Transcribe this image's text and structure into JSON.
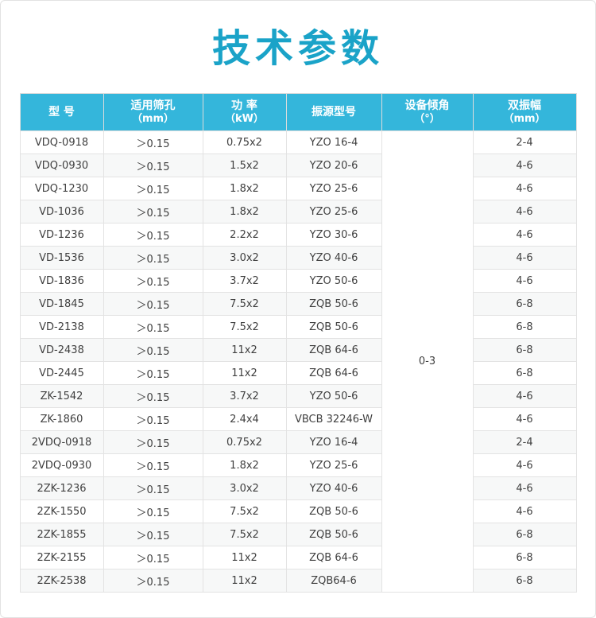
{
  "page": {
    "title": "技术参数"
  },
  "colors": {
    "title": "#1aa3c8",
    "header_bg": "#34b6db",
    "header_text": "#ffffff",
    "body_text": "#3f3f3f",
    "border": "#e3e3e3"
  },
  "table": {
    "headers": [
      {
        "line1": "型 号",
        "line2": ""
      },
      {
        "line1": "适用筛孔",
        "line2": "（mm）"
      },
      {
        "line1": "功 率",
        "line2": "（kW）"
      },
      {
        "line1": "振源型号",
        "line2": ""
      },
      {
        "line1": "设备倾角",
        "line2": "（°）"
      },
      {
        "line1": "双振幅",
        "line2": "（mm）"
      }
    ],
    "incline_value": "0-3",
    "rows": [
      {
        "model": "VDQ-0918",
        "sieve": "＞0.15",
        "power": "0.75x2",
        "source": "YZO 16-4",
        "amplitude": "2-4"
      },
      {
        "model": "VDQ-0930",
        "sieve": "＞0.15",
        "power": "1.5x2",
        "source": "YZO 20-6",
        "amplitude": "4-6"
      },
      {
        "model": "VDQ-1230",
        "sieve": "＞0.15",
        "power": "1.8x2",
        "source": "YZO 25-6",
        "amplitude": "4-6"
      },
      {
        "model": "VD-1036",
        "sieve": "＞0.15",
        "power": "1.8x2",
        "source": "YZO 25-6",
        "amplitude": "4-6"
      },
      {
        "model": "VD-1236",
        "sieve": "＞0.15",
        "power": "2.2x2",
        "source": "YZO 30-6",
        "amplitude": "4-6"
      },
      {
        "model": "VD-1536",
        "sieve": "＞0.15",
        "power": "3.0x2",
        "source": "YZO 40-6",
        "amplitude": "4-6"
      },
      {
        "model": "VD-1836",
        "sieve": "＞0.15",
        "power": "3.7x2",
        "source": "YZO 50-6",
        "amplitude": "4-6"
      },
      {
        "model": "VD-1845",
        "sieve": "＞0.15",
        "power": "7.5x2",
        "source": "ZQB 50-6",
        "amplitude": "6-8"
      },
      {
        "model": "VD-2138",
        "sieve": "＞0.15",
        "power": "7.5x2",
        "source": "ZQB 50-6",
        "amplitude": "6-8"
      },
      {
        "model": "VD-2438",
        "sieve": "＞0.15",
        "power": "11x2",
        "source": "ZQB 64-6",
        "amplitude": "6-8"
      },
      {
        "model": "VD-2445",
        "sieve": "＞0.15",
        "power": "11x2",
        "source": "ZQB 64-6",
        "amplitude": "6-8"
      },
      {
        "model": "ZK-1542",
        "sieve": "＞0.15",
        "power": "3.7x2",
        "source": "YZO 50-6",
        "amplitude": "4-6"
      },
      {
        "model": "ZK-1860",
        "sieve": "＞0.15",
        "power": "2.4x4",
        "source": "VBCB 32246-W",
        "amplitude": "4-6"
      },
      {
        "model": "2VDQ-0918",
        "sieve": "＞0.15",
        "power": "0.75x2",
        "source": "YZO 16-4",
        "amplitude": "2-4"
      },
      {
        "model": "2VDQ-0930",
        "sieve": "＞0.15",
        "power": "1.8x2",
        "source": "YZO 25-6",
        "amplitude": "4-6"
      },
      {
        "model": "2ZK-1236",
        "sieve": "＞0.15",
        "power": "3.0x2",
        "source": "YZO 40-6",
        "amplitude": "4-6"
      },
      {
        "model": "2ZK-1550",
        "sieve": "＞0.15",
        "power": "7.5x2",
        "source": "ZQB 50-6",
        "amplitude": "4-6"
      },
      {
        "model": "2ZK-1855",
        "sieve": "＞0.15",
        "power": "7.5x2",
        "source": "ZQB 50-6",
        "amplitude": "6-8"
      },
      {
        "model": "2ZK-2155",
        "sieve": "＞0.15",
        "power": "11x2",
        "source": "ZQB 64-6",
        "amplitude": "6-8"
      },
      {
        "model": "2ZK-2538",
        "sieve": "＞0.15",
        "power": "11x2",
        "source": "ZQB64-6",
        "amplitude": "6-8"
      }
    ]
  }
}
